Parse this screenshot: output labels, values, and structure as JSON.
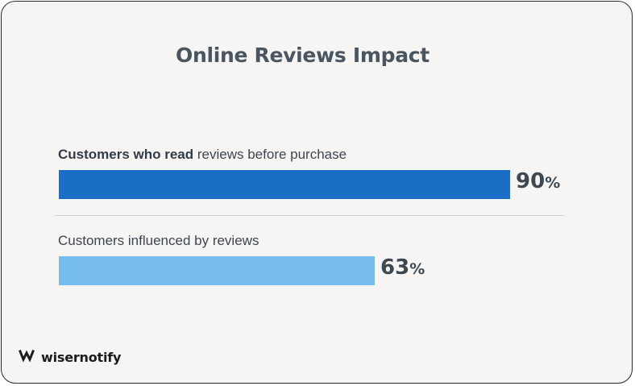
{
  "chart_data": {
    "type": "bar",
    "orientation": "horizontal",
    "title": "Online Reviews Impact",
    "categories": [
      "Customers who read reviews before purchase",
      "Customers influenced by reviews"
    ],
    "values": [
      90,
      63
    ],
    "value_labels": [
      {
        "num": "90",
        "unit": "%"
      },
      {
        "num": "63",
        "unit": "%"
      }
    ],
    "colors": [
      "#1a6ec5",
      "#75bced"
    ],
    "xlim": [
      0,
      100
    ],
    "grid": false,
    "legend": "none"
  },
  "label_parts": [
    {
      "bold": "Customers who read",
      "rest": " reviews before purchase"
    },
    {
      "bold": "",
      "rest": "Customers influenced by reviews"
    }
  ],
  "brand": {
    "name": "wisernotify",
    "icon": "wisernotify-logo-icon"
  },
  "colors": {
    "background": "#f6f5f3",
    "text": "#3e4852"
  }
}
